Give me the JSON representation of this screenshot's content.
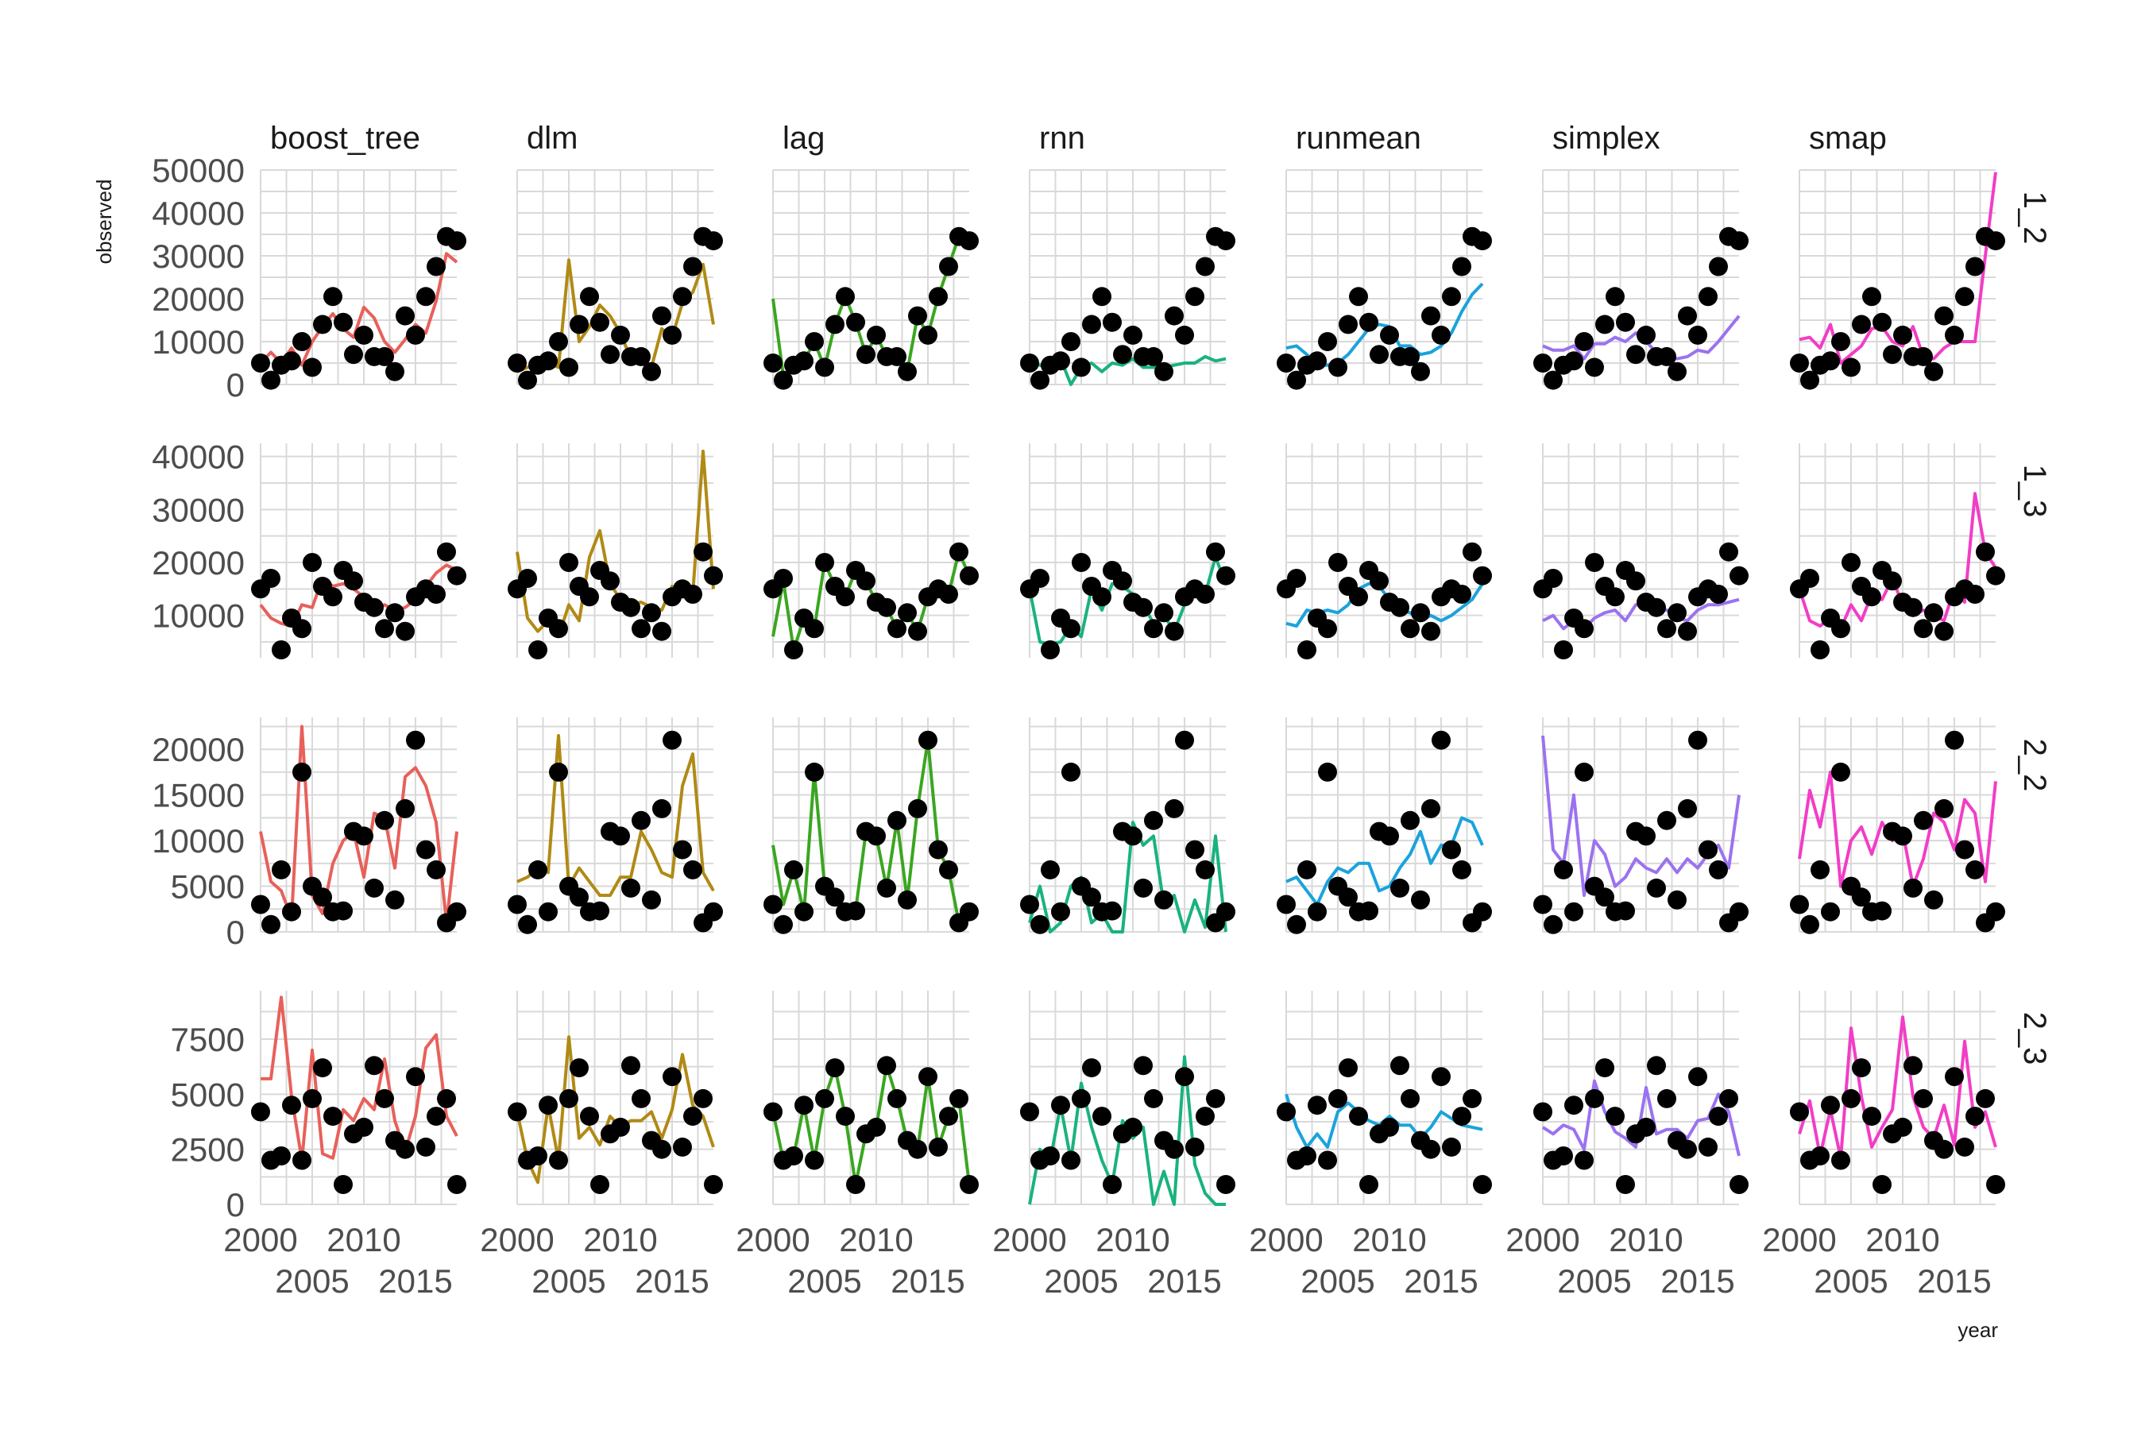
{
  "chart_data": {
    "type": "line",
    "xlabel": "year",
    "ylabel": "observed",
    "xlim": [
      2000,
      2019
    ],
    "x_tick_labels_top": [
      "2000",
      "2010"
    ],
    "x_tick_labels_bottom": [
      "2005",
      "2015"
    ],
    "grid": true,
    "facet_columns": [
      "boost_tree",
      "dlm",
      "lag",
      "rnn",
      "runmean",
      "simplex",
      "smap"
    ],
    "facet_rows": [
      "1_2",
      "1_3",
      "2_2",
      "2_3"
    ],
    "model_colors": {
      "boost_tree": "#e8605a",
      "dlm": "#b08a14",
      "lag": "#3aa620",
      "rnn": "#19b37c",
      "runmean": "#1aa3dc",
      "simplex": "#9b72f0",
      "smap": "#f23dc6"
    },
    "years": [
      2000,
      2001,
      2002,
      2003,
      2004,
      2005,
      2006,
      2007,
      2008,
      2009,
      2010,
      2011,
      2012,
      2013,
      2014,
      2015,
      2016,
      2017,
      2018,
      2019
    ],
    "panels": [
      {
        "row": "1_2",
        "ylim": [
          0,
          50000
        ],
        "y_ticks": [
          0,
          10000,
          20000,
          30000,
          40000,
          50000
        ],
        "y_tick_labels": [
          "0",
          "10000",
          "20000",
          "30000",
          "40000",
          "50000"
        ],
        "observed": [
          5000,
          1000,
          4500,
          5500,
          10000,
          4000,
          14000,
          20500,
          14500,
          7000,
          11500,
          6500,
          6500,
          3000,
          16000,
          11500,
          20500,
          27500,
          34500,
          33500
        ],
        "predicted": {
          "boost_tree": [
            5000,
            7500,
            5000,
            8500,
            4500,
            10000,
            13500,
            16500,
            13000,
            11000,
            18000,
            15500,
            10000,
            7500,
            10500,
            14000,
            12000,
            19500,
            30500,
            28500
          ],
          "dlm": [
            3000,
            4000,
            4500,
            5000,
            4000,
            29000,
            10000,
            13500,
            18500,
            16000,
            12000,
            6000,
            5000,
            4000,
            13000,
            11000,
            19000,
            21500,
            28000,
            14000
          ],
          "lag": [
            20000,
            2000,
            4500,
            5500,
            10000,
            4000,
            14000,
            20500,
            14500,
            7000,
            11500,
            6500,
            6500,
            3000,
            16000,
            11500,
            20500,
            27500,
            34500,
            33500
          ],
          "rnn": [
            5000,
            4500,
            3500,
            6000,
            0,
            4000,
            5000,
            3000,
            5000,
            4500,
            6000,
            4000,
            4000,
            4000,
            4500,
            5000,
            5000,
            6500,
            5500,
            6000
          ],
          "runmean": [
            8500,
            9000,
            7000,
            4500,
            4500,
            5000,
            7000,
            10000,
            13000,
            14000,
            13500,
            9000,
            9000,
            7000,
            7500,
            9000,
            12000,
            17000,
            21000,
            23500
          ],
          "simplex": [
            9000,
            8000,
            8000,
            9000,
            6000,
            9500,
            9500,
            11000,
            10000,
            12000,
            10000,
            7500,
            6500,
            6000,
            6500,
            8000,
            7500,
            10000,
            13000,
            16000
          ],
          "smap": [
            10500,
            11000,
            8500,
            14000,
            5000,
            7000,
            9000,
            13000,
            13500,
            10000,
            9000,
            13500,
            6500,
            6000,
            8500,
            10000,
            10000,
            10000,
            30000,
            49500
          ]
        }
      },
      {
        "row": "1_3",
        "ylim": [
          2000,
          42500
        ],
        "y_ticks": [
          10000,
          20000,
          30000,
          40000
        ],
        "y_tick_labels": [
          "10000",
          "20000",
          "30000",
          "40000"
        ],
        "observed": [
          15000,
          17000,
          3500,
          9500,
          7500,
          20000,
          15500,
          13500,
          18500,
          16500,
          12500,
          11500,
          7500,
          10500,
          7000,
          13500,
          15000,
          14000,
          22000,
          17500
        ],
        "predicted": {
          "boost_tree": [
            12000,
            9500,
            8500,
            8000,
            12000,
            11500,
            17000,
            15500,
            16000,
            15000,
            13500,
            11000,
            12000,
            11000,
            11500,
            13000,
            15500,
            18000,
            19500,
            18500
          ],
          "dlm": [
            22000,
            9500,
            7000,
            9000,
            6000,
            12000,
            9000,
            21000,
            26000,
            16000,
            13000,
            12000,
            12500,
            11500,
            11000,
            15500,
            13500,
            14000,
            41000,
            15000
          ],
          "lag": [
            6000,
            16500,
            3500,
            9500,
            7500,
            20000,
            15500,
            13500,
            18500,
            16500,
            12500,
            11500,
            7500,
            10500,
            7000,
            13500,
            15000,
            14000,
            22000,
            17500
          ],
          "rnn": [
            15000,
            5000,
            4500,
            5000,
            8000,
            6000,
            15000,
            11000,
            16000,
            15500,
            14000,
            12000,
            8500,
            10000,
            7000,
            12000,
            16000,
            14000,
            21000,
            16000
          ],
          "runmean": [
            8500,
            8000,
            11000,
            10500,
            11000,
            10500,
            12000,
            15000,
            16000,
            15500,
            13000,
            11000,
            10500,
            9000,
            10000,
            9000,
            10000,
            11500,
            13000,
            16000
          ],
          "simplex": [
            9000,
            10000,
            7500,
            9000,
            7500,
            9500,
            10500,
            11000,
            9000,
            12000,
            12000,
            11500,
            11000,
            9500,
            9000,
            11000,
            12000,
            12000,
            12500,
            13000
          ],
          "smap": [
            15000,
            9000,
            8000,
            9500,
            7500,
            12000,
            9000,
            14000,
            13000,
            17000,
            12000,
            10000,
            11000,
            10000,
            9000,
            15000,
            12500,
            33000,
            22000,
            19000
          ]
        }
      },
      {
        "row": "2_2",
        "ylim": [
          0,
          23500
        ],
        "y_ticks": [
          0,
          5000,
          10000,
          15000,
          20000
        ],
        "y_tick_labels": [
          "0",
          "5000",
          "10000",
          "15000",
          "20000"
        ],
        "observed": [
          3000,
          800,
          6800,
          2200,
          17500,
          5000,
          3800,
          2200,
          2300,
          11000,
          10500,
          4800,
          12200,
          3500,
          13500,
          21000,
          9000,
          6800,
          1000,
          2200
        ],
        "predicted": {
          "boost_tree": [
            11000,
            5500,
            4500,
            1500,
            22500,
            4000,
            2000,
            7500,
            10000,
            11000,
            6000,
            13000,
            12500,
            7000,
            17000,
            18000,
            16000,
            12000,
            1000,
            11000
          ],
          "dlm": [
            5500,
            6000,
            7000,
            6500,
            21500,
            5000,
            7000,
            5500,
            4000,
            4000,
            6000,
            6000,
            11000,
            9000,
            6500,
            6000,
            16000,
            19500,
            6500,
            4500
          ],
          "lag": [
            9500,
            3000,
            6800,
            2200,
            17500,
            5000,
            3800,
            2200,
            2300,
            11000,
            10500,
            4800,
            12200,
            3500,
            13500,
            21000,
            9000,
            6800,
            1000,
            2200
          ],
          "rnn": [
            1000,
            5000,
            0,
            1000,
            5000,
            6000,
            1000,
            2000,
            0,
            0,
            12000,
            9500,
            10500,
            3000,
            4000,
            0,
            3500,
            500,
            10500,
            0
          ],
          "runmean": [
            5500,
            6000,
            4500,
            3000,
            5500,
            7000,
            6500,
            7500,
            7500,
            4500,
            5000,
            7000,
            8500,
            11000,
            7500,
            9500,
            9500,
            12500,
            12000,
            9500
          ],
          "simplex": [
            21500,
            9000,
            7500,
            15000,
            4000,
            10000,
            8500,
            5000,
            6000,
            8000,
            7000,
            6500,
            8000,
            6500,
            8000,
            7000,
            8500,
            9500,
            7000,
            15000
          ],
          "smap": [
            8000,
            15500,
            11500,
            17500,
            5000,
            10000,
            11500,
            8500,
            12000,
            10000,
            11000,
            5000,
            8000,
            13000,
            12000,
            9000,
            14500,
            13000,
            5500,
            16500
          ]
        }
      },
      {
        "row": "2_3",
        "ylim": [
          0,
          9700
        ],
        "y_ticks": [
          0,
          2500,
          5000,
          7500
        ],
        "y_tick_labels": [
          "0",
          "2500",
          "5000",
          "7500"
        ],
        "observed": [
          4200,
          2000,
          2200,
          4500,
          2000,
          4800,
          6200,
          4000,
          900,
          3200,
          3500,
          6300,
          4800,
          2900,
          2500,
          5800,
          2600,
          4000,
          4800,
          900
        ],
        "predicted": {
          "boost_tree": [
            5700,
            5700,
            9400,
            4900,
            2000,
            7000,
            2300,
            2100,
            4300,
            3800,
            4800,
            4300,
            6600,
            3800,
            2400,
            4000,
            7100,
            7700,
            4000,
            3100
          ],
          "dlm": [
            4200,
            2000,
            1000,
            4500,
            2000,
            7600,
            3000,
            3500,
            2700,
            4000,
            3500,
            3800,
            3800,
            4200,
            3000,
            4300,
            6800,
            4500,
            4000,
            2600
          ],
          "lag": [
            4200,
            2000,
            2200,
            4500,
            2000,
            4800,
            6200,
            4000,
            900,
            3200,
            3500,
            6300,
            4800,
            2900,
            2500,
            5800,
            2600,
            4000,
            4800,
            900
          ],
          "rnn": [
            0,
            2500,
            2000,
            4500,
            2000,
            5500,
            3500,
            2000,
            900,
            3800,
            3000,
            3500,
            0,
            1500,
            0,
            6700,
            1800,
            500,
            0,
            0
          ],
          "runmean": [
            5000,
            3500,
            2600,
            3200,
            2600,
            4200,
            4600,
            4200,
            3800,
            3600,
            4000,
            3600,
            3600,
            3000,
            3500,
            4200,
            3900,
            3600,
            3500,
            3400
          ],
          "simplex": [
            3500,
            3200,
            3600,
            3400,
            2500,
            5600,
            4200,
            3300,
            3000,
            2600,
            5300,
            3200,
            3400,
            3400,
            3000,
            3800,
            3900,
            5000,
            4200,
            2200
          ],
          "smap": [
            3200,
            4700,
            2200,
            4300,
            2100,
            8000,
            4900,
            2600,
            3500,
            4300,
            8500,
            4900,
            3500,
            3000,
            4500,
            2700,
            7400,
            3500,
            4200,
            2600
          ]
        }
      }
    ]
  }
}
